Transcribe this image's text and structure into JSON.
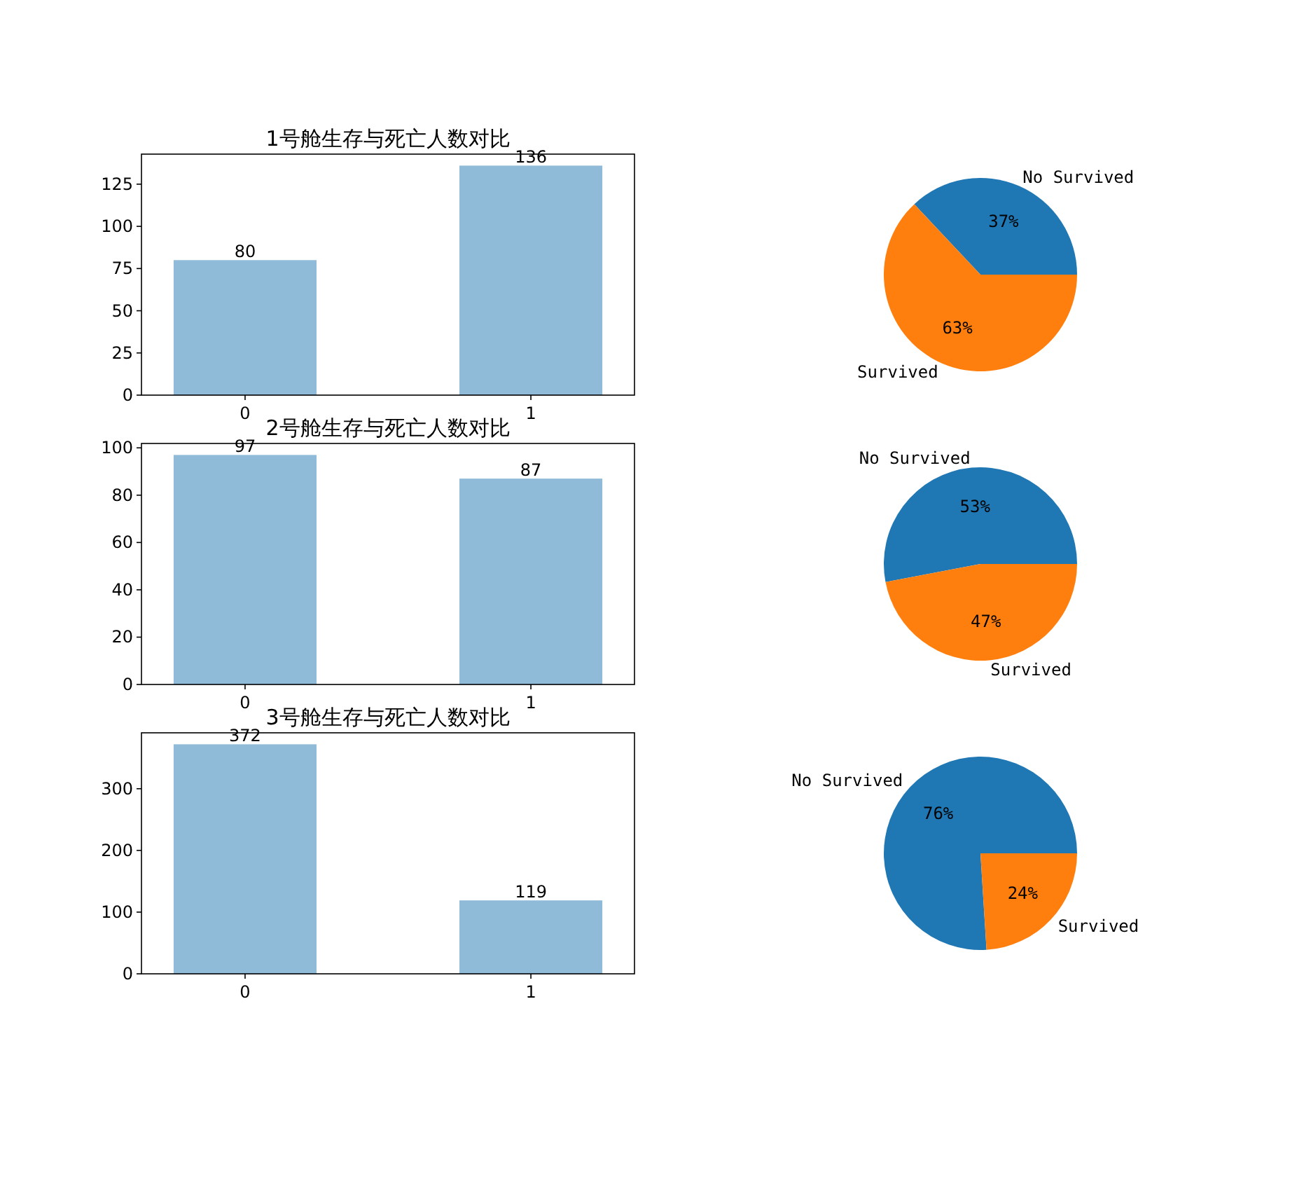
{
  "chart_data": [
    {
      "type": "bar",
      "title": "1号舱生存与死亡人数对比",
      "categories": [
        "0",
        "1"
      ],
      "values": [
        80,
        136
      ],
      "color": "#8fbbd9",
      "ylim": [
        0,
        142.8
      ],
      "yticks": [
        0,
        25,
        50,
        75,
        100,
        125
      ],
      "data_labels": true
    },
    {
      "type": "pie",
      "categories": [
        "No Survived",
        "Survived"
      ],
      "values": [
        37,
        63
      ],
      "colors": [
        "#1f77b4",
        "#ff7f0e"
      ],
      "value_labels": [
        "37%",
        "63%"
      ]
    },
    {
      "type": "bar",
      "title": "2号舱生存与死亡人数对比",
      "categories": [
        "0",
        "1"
      ],
      "values": [
        97,
        87
      ],
      "color": "#8fbbd9",
      "ylim": [
        0,
        101.85
      ],
      "yticks": [
        0,
        20,
        40,
        60,
        80,
        100
      ],
      "data_labels": true
    },
    {
      "type": "pie",
      "categories": [
        "No Survived",
        "Survived"
      ],
      "values": [
        53,
        47
      ],
      "colors": [
        "#1f77b4",
        "#ff7f0e"
      ],
      "value_labels": [
        "53%",
        "47%"
      ]
    },
    {
      "type": "bar",
      "title": "3号舱生存与死亡人数对比",
      "categories": [
        "0",
        "1"
      ],
      "values": [
        372,
        119
      ],
      "color": "#8fbbd9",
      "ylim": [
        0,
        390.6
      ],
      "yticks": [
        0,
        100,
        200,
        300
      ],
      "data_labels": true
    },
    {
      "type": "pie",
      "categories": [
        "No Survived",
        "Survived"
      ],
      "values": [
        76,
        24
      ],
      "colors": [
        "#1f77b4",
        "#ff7f0e"
      ],
      "value_labels": [
        "76%",
        "24%"
      ]
    }
  ]
}
